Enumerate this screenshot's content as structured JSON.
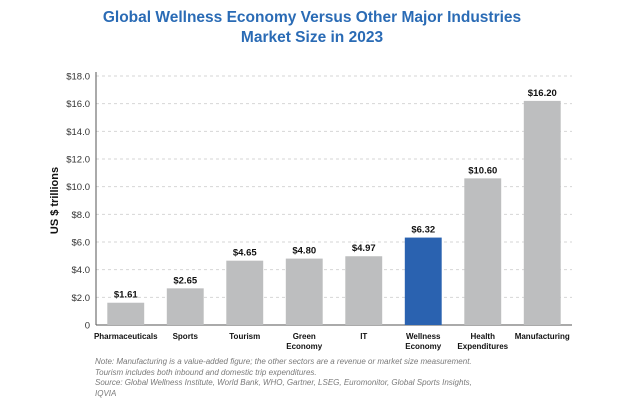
{
  "chart_data": {
    "type": "bar",
    "title_lines": [
      "Global Wellness Economy Versus Other Major Industries",
      "Market Size in 2023"
    ],
    "ylabel": "US $ trillions",
    "xlabel": "",
    "ylim": [
      0,
      18
    ],
    "yticks": [
      0,
      2,
      4,
      6,
      8,
      10,
      12,
      14,
      16,
      18
    ],
    "ytick_labels": [
      "0",
      "$2.0",
      "$4.0",
      "$6.0",
      "$8.0",
      "$10.0",
      "$12.0",
      "$14.0",
      "$16.0",
      "$18.0"
    ],
    "grid": true,
    "categories": [
      [
        "Pharmaceuticals"
      ],
      [
        "Sports"
      ],
      [
        "Tourism"
      ],
      [
        "Green",
        "Economy"
      ],
      [
        "IT"
      ],
      [
        "Wellness",
        "Economy"
      ],
      [
        "Health",
        "Expenditures"
      ],
      [
        "Manufacturing"
      ]
    ],
    "values": [
      1.61,
      2.65,
      4.65,
      4.8,
      4.97,
      6.32,
      10.6,
      16.2
    ],
    "value_labels": [
      "$1.61",
      "$2.65",
      "$4.65",
      "$4.80",
      "$4.97",
      "$6.32",
      "$10.60",
      "$16.20"
    ],
    "highlight_index": 5,
    "colors": {
      "bar": "#bdbebf",
      "highlight": "#2a62b0",
      "grid": "#d6d6d6",
      "title": "#2a6bb5"
    }
  },
  "notes": [
    "Note: Manufacturing is a value-added figure; the other sectors are a revenue or market size measurement.",
    "Tourism includes both inbound and domestic trip expenditures.",
    "Source: Global Wellness Institute, World Bank, WHO, Gartner, LSEG, Euromonitor, Global Sports Insights,",
    "IQVIA"
  ]
}
